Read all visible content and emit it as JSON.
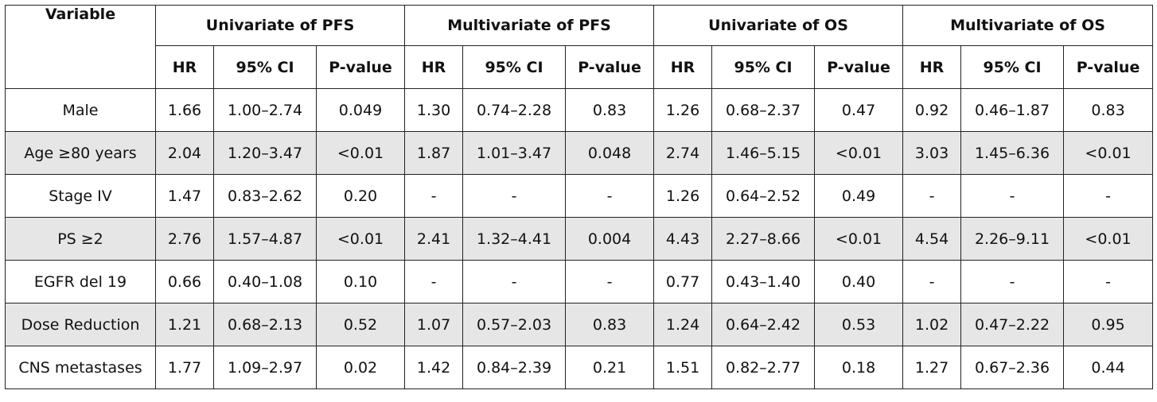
{
  "table": {
    "variable_header": "Variable",
    "groups": [
      "Univariate of PFS",
      "Multivariate of PFS",
      "Univariate of OS",
      "Multivariate of OS"
    ],
    "subheaders": [
      "HR",
      "95% CI",
      "P-value"
    ],
    "rows": [
      {
        "variable": "Male",
        "shaded": false,
        "cells": [
          "1.66",
          "1.00–2.74",
          "0.049",
          "1.30",
          "0.74–2.28",
          "0.83",
          "1.26",
          "0.68–2.37",
          "0.47",
          "0.92",
          "0.46–1.87",
          "0.83"
        ]
      },
      {
        "variable": "Age ≥80 years",
        "shaded": true,
        "cells": [
          "2.04",
          "1.20–3.47",
          "<0.01",
          "1.87",
          "1.01–3.47",
          "0.048",
          "2.74",
          "1.46–5.15",
          "<0.01",
          "3.03",
          "1.45–6.36",
          "<0.01"
        ]
      },
      {
        "variable": "Stage IV",
        "shaded": false,
        "cells": [
          "1.47",
          "0.83–2.62",
          "0.20",
          "-",
          "-",
          "-",
          "1.26",
          "0.64–2.52",
          "0.49",
          "-",
          "-",
          "-"
        ]
      },
      {
        "variable": "PS ≥2",
        "shaded": true,
        "cells": [
          "2.76",
          "1.57–4.87",
          "<0.01",
          "2.41",
          "1.32–4.41",
          "0.004",
          "4.43",
          "2.27–8.66",
          "<0.01",
          "4.54",
          "2.26–9.11",
          "<0.01"
        ]
      },
      {
        "variable": "EGFR del 19",
        "shaded": false,
        "cells": [
          "0.66",
          "0.40–1.08",
          "0.10",
          "-",
          "-",
          "-",
          "0.77",
          "0.43–1.40",
          "0.40",
          "-",
          "-",
          "-"
        ]
      },
      {
        "variable": "Dose Reduction",
        "shaded": true,
        "cells": [
          "1.21",
          "0.68–2.13",
          "0.52",
          "1.07",
          "0.57–2.03",
          "0.83",
          "1.24",
          "0.64–2.42",
          "0.53",
          "1.02",
          "0.47–2.22",
          "0.95"
        ]
      },
      {
        "variable": "CNS metastases",
        "shaded": false,
        "cells": [
          "1.77",
          "1.09–2.97",
          "0.02",
          "1.42",
          "0.84–2.39",
          "0.21",
          "1.51",
          "0.82–2.77",
          "0.18",
          "1.27",
          "0.67–2.36",
          "0.44"
        ]
      }
    ]
  }
}
